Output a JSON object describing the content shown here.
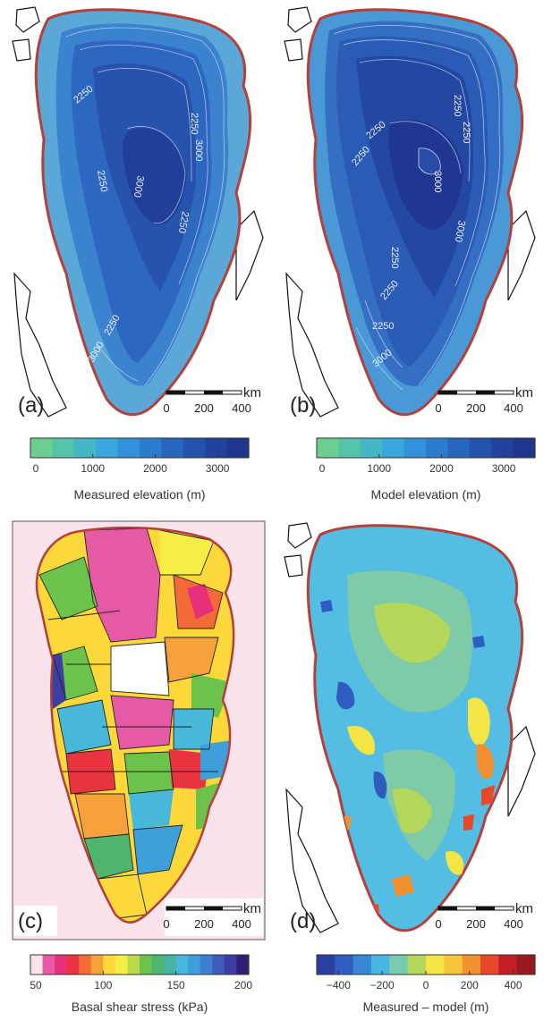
{
  "panels": [
    {
      "label": "(a)",
      "scale_unit": "km",
      "scale_ticks": [
        "0",
        "200",
        "400"
      ],
      "contours": [
        "2250",
        "2250",
        "3000",
        "3000",
        "2250",
        "2250",
        "2250",
        "3000"
      ]
    },
    {
      "label": "(b)",
      "scale_unit": "km",
      "scale_ticks": [
        "0",
        "200",
        "400"
      ],
      "contours": [
        "2250",
        "2250",
        "2250",
        "3000",
        "3000",
        "2250",
        "2250",
        "2250",
        "3000",
        "2250"
      ]
    },
    {
      "label": "(c)",
      "scale_unit": "km",
      "scale_ticks": [
        "0",
        "200",
        "400"
      ]
    },
    {
      "label": "(d)",
      "scale_unit": "km",
      "scale_ticks": [
        "0",
        "200",
        "400"
      ]
    }
  ],
  "colorbars": [
    {
      "title": "Measured elevation (m)",
      "ticks": [
        "0",
        "1000",
        "2000",
        "3000"
      ],
      "tick_values": [
        0,
        1000,
        2000,
        3000
      ],
      "range": [
        0,
        3500
      ],
      "colors": [
        "#6ccf8f",
        "#55c3a8",
        "#45b6c6",
        "#3aa6dc",
        "#3291d9",
        "#2b7bcf",
        "#2766bf",
        "#2453ad",
        "#22439c",
        "#1f368c"
      ]
    },
    {
      "title": "Model elevation (m)",
      "ticks": [
        "0",
        "1000",
        "2000",
        "3000"
      ],
      "tick_values": [
        0,
        1000,
        2000,
        3000
      ],
      "range": [
        0,
        3500
      ],
      "colors": [
        "#6ccf8f",
        "#55c3a8",
        "#45b6c6",
        "#3aa6dc",
        "#3291d9",
        "#2b7bcf",
        "#2766bf",
        "#2453ad",
        "#22439c",
        "#1f368c"
      ]
    },
    {
      "title": "Basal shear stress (kPa)",
      "ticks": [
        "50",
        "100",
        "150",
        "200"
      ],
      "tick_values": [
        50,
        100,
        150,
        200
      ],
      "range": [
        50,
        200
      ],
      "colors": [
        "#fbe3ec",
        "#e65aa5",
        "#e6307a",
        "#ea3340",
        "#f26a35",
        "#f7a13a",
        "#fcd83b",
        "#f6ee45",
        "#b9d94a",
        "#6cc34b",
        "#4fb56e",
        "#47b1a4",
        "#47b8d9",
        "#3f9fdb",
        "#3c7fd0",
        "#3f5ab9",
        "#3d3ea1",
        "#2f1e72"
      ]
    },
    {
      "title": "Measured – model (m)",
      "ticks": [
        "−400",
        "−200",
        "0",
        "200",
        "400"
      ],
      "tick_values": [
        -400,
        -200,
        0,
        200,
        400
      ],
      "range": [
        -500,
        500
      ],
      "colors": [
        "#2a3f9f",
        "#2e5cbf",
        "#3a85d6",
        "#48b6e3",
        "#79c9ae",
        "#b4d65a",
        "#f5e445",
        "#f8c53a",
        "#f39030",
        "#e8482a",
        "#c41f25",
        "#9a1820"
      ]
    }
  ]
}
